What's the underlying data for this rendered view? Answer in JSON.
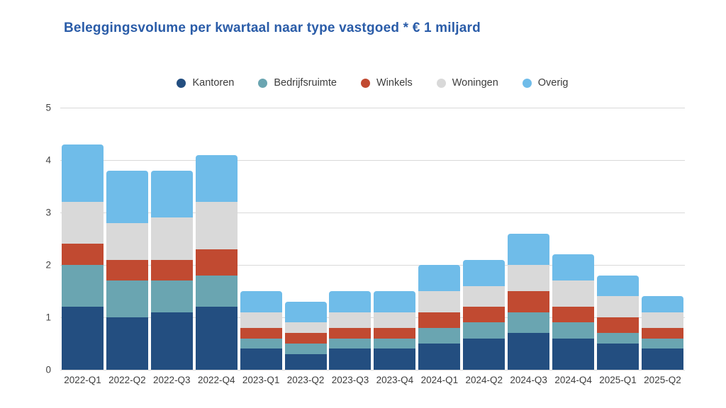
{
  "title": "Beleggingsvolume per kwartaal naar type vastgoed * € 1 miljard",
  "colors": {
    "title": "#2a5ca8",
    "axis_text": "#454545",
    "gridline": "#d9d9d9"
  },
  "chart_data": {
    "type": "bar",
    "stacked": true,
    "title": "Beleggingsvolume per kwartaal naar type vastgoed * € 1 miljard",
    "xlabel": "",
    "ylabel": "",
    "ylim": [
      0,
      5
    ],
    "yticks": [
      0,
      1,
      2,
      3,
      4,
      5
    ],
    "grid": true,
    "legend_position": "top-center",
    "categories": [
      "2022-Q1",
      "2022-Q2",
      "2022-Q3",
      "2022-Q4",
      "2023-Q1",
      "2023-Q2",
      "2023-Q3",
      "2023-Q4",
      "2024-Q1",
      "2024-Q2",
      "2024-Q3",
      "2024-Q4",
      "2025-Q1",
      "2025-Q2"
    ],
    "series": [
      {
        "name": "Kantoren",
        "color": "#234e80",
        "values": [
          1.2,
          1.0,
          1.1,
          1.2,
          0.4,
          0.3,
          0.4,
          0.4,
          0.5,
          0.6,
          0.7,
          0.6,
          0.5,
          0.4
        ]
      },
      {
        "name": "Bedrijfsruimte",
        "color": "#6aa5b1",
        "values": [
          0.8,
          0.7,
          0.6,
          0.6,
          0.2,
          0.2,
          0.2,
          0.2,
          0.3,
          0.3,
          0.4,
          0.3,
          0.2,
          0.2
        ]
      },
      {
        "name": "Winkels",
        "color": "#c14a31",
        "values": [
          0.4,
          0.4,
          0.4,
          0.5,
          0.2,
          0.2,
          0.2,
          0.2,
          0.3,
          0.3,
          0.4,
          0.3,
          0.3,
          0.2
        ]
      },
      {
        "name": "Woningen",
        "color": "#d9d9d9",
        "values": [
          0.8,
          0.7,
          0.8,
          0.9,
          0.3,
          0.2,
          0.3,
          0.3,
          0.4,
          0.4,
          0.5,
          0.5,
          0.4,
          0.3
        ]
      },
      {
        "name": "Overig",
        "color": "#6fbce9",
        "values": [
          1.1,
          1.0,
          0.9,
          0.9,
          0.4,
          0.4,
          0.4,
          0.4,
          0.5,
          0.5,
          0.6,
          0.5,
          0.4,
          0.3
        ]
      }
    ],
    "totals": [
      4.3,
      3.8,
      3.8,
      4.1,
      1.5,
      1.3,
      1.5,
      1.5,
      2.0,
      2.1,
      2.6,
      2.2,
      1.8,
      1.4
    ]
  }
}
